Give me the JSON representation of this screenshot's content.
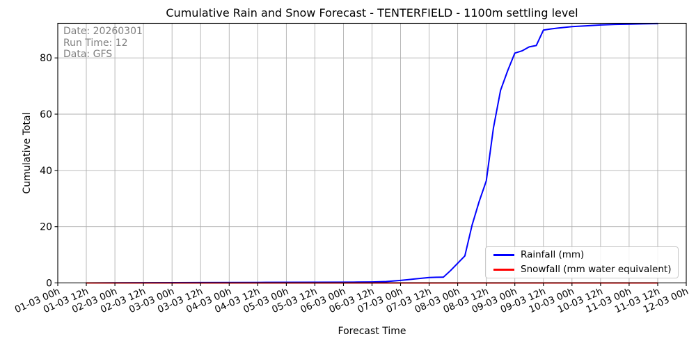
{
  "chart_data": {
    "type": "line",
    "title": "Cumulative Rain and Snow Forecast - TENTERFIELD - 1100m settling level",
    "xlabel": "Forecast Time",
    "ylabel": "Cumulative Total",
    "annotations": [
      "Date: 20260301",
      "Run Time: 12",
      "Data: GFS"
    ],
    "grid": true,
    "legend_position": "lower right",
    "x_tick_labels": [
      "01-03 00h",
      "01-03 12h",
      "02-03 00h",
      "02-03 12h",
      "03-03 00h",
      "03-03 12h",
      "04-03 00h",
      "04-03 12h",
      "05-03 00h",
      "05-03 12h",
      "06-03 00h",
      "06-03 12h",
      "07-03 00h",
      "07-03 12h",
      "08-03 00h",
      "08-03 12h",
      "09-03 00h",
      "09-03 12h",
      "10-03 00h",
      "10-03 12h",
      "11-03 00h",
      "11-03 12h",
      "12-03 00h"
    ],
    "x_tick_hours": [
      0,
      12,
      24,
      36,
      48,
      60,
      72,
      84,
      96,
      108,
      120,
      132,
      144,
      156,
      168,
      180,
      192,
      204,
      216,
      228,
      240,
      252,
      264
    ],
    "y_ticks": [
      0,
      20,
      40,
      60,
      80
    ],
    "xlim_hours": [
      0,
      264
    ],
    "ylim": [
      0,
      92.3
    ],
    "series": [
      {
        "key": "rainfall",
        "name": "Rainfall (mm)",
        "color": "#0000ff",
        "points": [
          [
            12,
            0
          ],
          [
            24,
            0.05
          ],
          [
            36,
            0.1
          ],
          [
            60,
            0.15
          ],
          [
            84,
            0.2
          ],
          [
            108,
            0.25
          ],
          [
            126,
            0.3
          ],
          [
            132,
            0.35
          ],
          [
            138,
            0.5
          ],
          [
            144,
            0.9
          ],
          [
            147,
            1.15
          ],
          [
            150,
            1.4
          ],
          [
            153,
            1.65
          ],
          [
            156,
            1.9
          ],
          [
            159,
            2.0
          ],
          [
            162,
            2.05
          ],
          [
            165,
            4.4
          ],
          [
            168,
            7.0
          ],
          [
            171,
            9.6
          ],
          [
            174,
            20.5
          ],
          [
            177,
            28.9
          ],
          [
            180,
            36.3
          ],
          [
            183,
            55.0
          ],
          [
            186,
            68.5
          ],
          [
            189,
            75.5
          ],
          [
            192,
            81.7
          ],
          [
            195,
            82.5
          ],
          [
            198,
            83.9
          ],
          [
            201,
            84.4
          ],
          [
            204,
            89.9
          ],
          [
            207,
            90.3
          ],
          [
            210,
            90.6
          ],
          [
            216,
            91.1
          ],
          [
            222,
            91.4
          ],
          [
            228,
            91.7
          ],
          [
            234,
            91.9
          ],
          [
            240,
            92.0
          ],
          [
            246,
            92.1
          ],
          [
            252,
            92.2
          ]
        ]
      },
      {
        "key": "snowfall",
        "name": "Snowfall (mm water equivalent)",
        "color": "#ff0000",
        "points": [
          [
            12,
            0
          ],
          [
            60,
            0
          ],
          [
            108,
            0
          ],
          [
            156,
            0
          ],
          [
            204,
            0
          ],
          [
            252,
            0
          ]
        ]
      }
    ]
  }
}
